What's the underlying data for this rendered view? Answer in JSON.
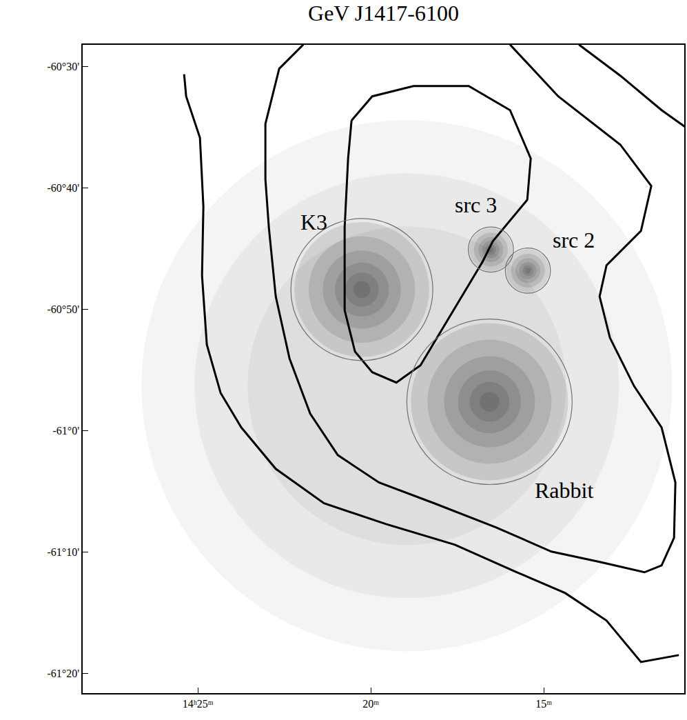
{
  "chart_data": {
    "type": "sky_map",
    "title": "GeV J1417-6100",
    "xlim": [
      28.33,
      10.94
    ],
    "xticks": [
      {
        "value": 25,
        "label": "14ʰ25ᵐ"
      },
      {
        "value": 20,
        "label": "20ᵐ"
      },
      {
        "value": 15,
        "label": "15ᵐ"
      }
    ],
    "ylim": [
      -61.36,
      -60.47
    ],
    "yticks": [
      {
        "value": -60.5,
        "label": "-60°30'"
      },
      {
        "value": -60.66667,
        "label": "-60°40'"
      },
      {
        "value": -60.83333,
        "label": "-60°50'"
      },
      {
        "value": -61,
        "label": "-61°0'"
      },
      {
        "value": -61.16667,
        "label": "-61°10'"
      },
      {
        "value": -61.33333,
        "label": "-61°20'"
      }
    ],
    "field": {
      "x": 18.96,
      "y": -60.938,
      "radius": 0.3646
    },
    "regions": [
      {
        "name": "K3",
        "x": 20.26,
        "y": -60.806,
        "radius": 0.0975,
        "label_x": 21.65,
        "label_y": -60.713
      },
      {
        "name": "src 3",
        "x": 16.53,
        "y": -60.751,
        "radius": 0.031,
        "label_x": 16.97,
        "label_y": -60.69
      },
      {
        "name": "src 2",
        "x": 15.46,
        "y": -60.78,
        "radius": 0.031,
        "label_x": 14.14,
        "label_y": -60.738
      },
      {
        "name": "Rabbit",
        "x": 16.57,
        "y": -60.96,
        "radius": 0.1136,
        "label_x": 14.42,
        "label_y": -61.082
      }
    ],
    "contours": [
      {
        "x": [
          25.398,
          25.339,
          24.94,
          24.841,
          24.88,
          24.741,
          24.343,
          23.745,
          22.749,
          21.355,
          19.562,
          17.57,
          15.777,
          14.382,
          13.187,
          12.191,
          11.096
        ],
        "y": [
          -60.5104,
          -60.5407,
          -60.5975,
          -60.6922,
          -60.7869,
          -60.8816,
          -60.9479,
          -60.9953,
          -61.0521,
          -61.0994,
          -61.1279,
          -61.1563,
          -61.1941,
          -61.2226,
          -61.2604,
          -61.3173,
          -61.3078
        ]
      },
      {
        "x": [
          13.984,
          12.789,
          11.594,
          10.897
        ],
        "y": [
          -60.4697,
          -60.5123,
          -60.5597,
          -60.5833
        ]
      },
      {
        "x": [
          21.952,
          22.649,
          23.048,
          23.048,
          22.948,
          22.749,
          22.351,
          21.753,
          20.956,
          19.761,
          18.168,
          16.375,
          14.781,
          13.387,
          12.092,
          11.594,
          11.235,
          11.196,
          11.594,
          12.39,
          13.088,
          13.387,
          13.187,
          12.191,
          11.893,
          12.789,
          14.582,
          15.976
        ],
        "y": [
          -60.4697,
          -60.5028,
          -60.5786,
          -60.6544,
          -60.7207,
          -60.8154,
          -60.9006,
          -60.9763,
          -61.0332,
          -61.071,
          -61.0994,
          -61.1326,
          -61.1657,
          -61.1799,
          -61.1941,
          -61.1847,
          -61.1468,
          -61.071,
          -60.9953,
          -60.9385,
          -60.8722,
          -60.8154,
          -60.7727,
          -60.7254,
          -60.6638,
          -60.607,
          -60.5407,
          -60.4697
        ]
      },
      {
        "x": [
          20.558,
          19.96,
          18.765,
          17.171,
          15.976,
          15.378,
          15.478,
          15.976,
          16.474,
          16.773,
          17.371,
          17.968,
          18.566,
          19.263,
          19.96,
          20.458,
          20.757,
          20.757,
          20.657,
          20.558
        ],
        "y": [
          -60.5739,
          -60.5407,
          -60.5265,
          -60.5265,
          -60.5597,
          -60.626,
          -60.6828,
          -60.7112,
          -60.7396,
          -60.768,
          -60.8154,
          -60.8627,
          -60.9101,
          -60.9337,
          -60.9195,
          -60.8911,
          -60.8343,
          -60.7207,
          -60.626,
          -60.5739
        ]
      }
    ]
  }
}
